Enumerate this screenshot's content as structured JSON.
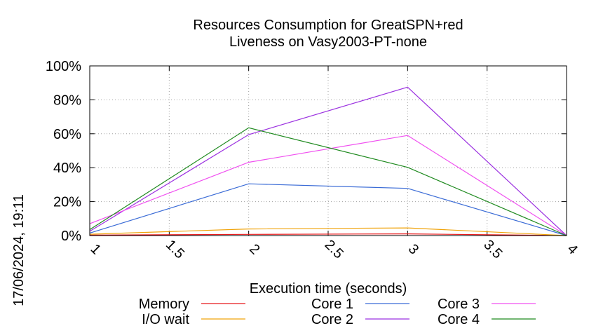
{
  "chart_data": {
    "type": "line",
    "title_line1": "Resources Consumption for GreatSPN+red",
    "title_line2": "Liveness on Vasy2003-PT-none",
    "xlabel": "Execution time (seconds)",
    "ylabel": "",
    "xlim": [
      1,
      4
    ],
    "ylim": [
      0,
      100
    ],
    "x_ticks": [
      "1",
      "1.5",
      "2",
      "2.5",
      "3",
      "3.5",
      "4"
    ],
    "y_ticks": [
      "0%",
      "20%",
      "40%",
      "60%",
      "80%",
      "100%"
    ],
    "grid": true,
    "legend_position": "bottom",
    "timestamp": "17/06/2024, 19:11",
    "series": [
      {
        "name": "Memory",
        "color": "#e8191b",
        "x": [
          1,
          2,
          3,
          4
        ],
        "y": [
          0.3,
          0.7,
          1.0,
          0
        ]
      },
      {
        "name": "I/O wait",
        "color": "#f0a30a",
        "x": [
          1,
          2,
          3,
          4
        ],
        "y": [
          0.8,
          3.9,
          4.5,
          0
        ]
      },
      {
        "name": "Core 1",
        "color": "#3a6bd6",
        "x": [
          1,
          2,
          3,
          4
        ],
        "y": [
          1.5,
          30.5,
          27.8,
          0
        ]
      },
      {
        "name": "Core 2",
        "color": "#9b30e0",
        "x": [
          1,
          2,
          3,
          4
        ],
        "y": [
          2.5,
          59.5,
          87.5,
          0
        ]
      },
      {
        "name": "Core 3",
        "color": "#f050f0",
        "x": [
          1,
          2,
          3,
          4
        ],
        "y": [
          7.0,
          43.2,
          59.0,
          0
        ]
      },
      {
        "name": "Core 4",
        "color": "#1f8a1f",
        "x": [
          1,
          2,
          3,
          4
        ],
        "y": [
          3.5,
          63.5,
          40.2,
          0
        ]
      }
    ]
  }
}
